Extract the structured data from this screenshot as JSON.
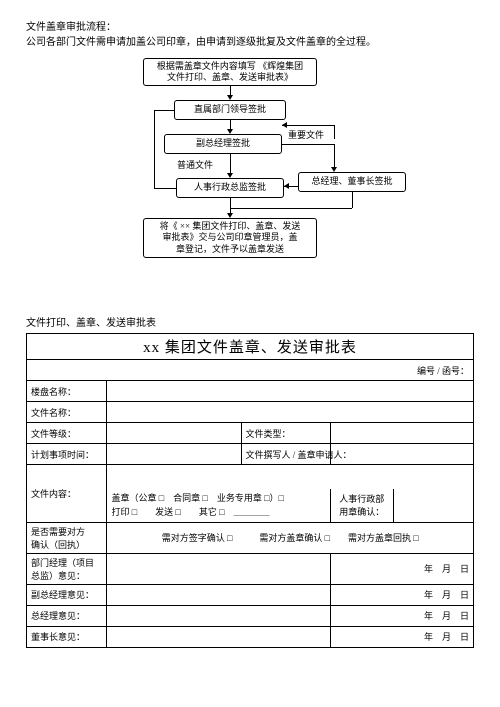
{
  "header": {
    "line1": "文件盖章审批流程：",
    "line2": "公司各部门文件需申请加盖公司印章，由申请到逐级批复及文件盖章的全过程。"
  },
  "flow": {
    "nodes": {
      "n1": "根据需盖章文件内容填写 《辉煌集团\n文件打印、盖章、发送审批表》",
      "n2": "直属部门领导签批",
      "n3": "副总经理签批",
      "n4": "人事行政总监签批",
      "n5": "总经理、董事长签批",
      "n6": "将《 ×× 集团文件打印、盖章、发送\n审批表》交与公司印章管理员，盖\n章登记，文件予以盖章发送"
    },
    "edge_labels": {
      "important": "重要文件",
      "ordinary": "普通文件"
    }
  },
  "form": {
    "caption": "文件打印、盖章、发送审批表",
    "title": "xx 集团文件盖章、发送审批表",
    "serial_label": "编号 / 函号：",
    "row_labels": {
      "project": "楼盘名称：",
      "file_name": "文件名称：",
      "file_level": "文件等级：",
      "file_type": "文件类型：",
      "plan_time": "计划事项时间：",
      "filled_by": "文件撰写人 / 盖章申请人：",
      "content": "文件内容：",
      "hr_confirm": "人事行政部\n用章确认：",
      "need_confirm": "是否需要对方\n确认（回执）",
      "dept_mgr": "部门经理（项目\n总监）意见：",
      "vp": "副总经理意见：",
      "gm": "总经理意见：",
      "chairman": "董事长意见："
    },
    "checkbox_lines": {
      "seal_line": "盖章（公章 □　合同章 □　业务专用章 □）□",
      "send_line": "打印 □　　发送 □　　其它 □　＿＿＿＿",
      "confirm_line": "需对方签字确认 □　　　需对方盖章确认 □　　需对方盖章回执 □"
    },
    "date_text": "年　月　日"
  }
}
